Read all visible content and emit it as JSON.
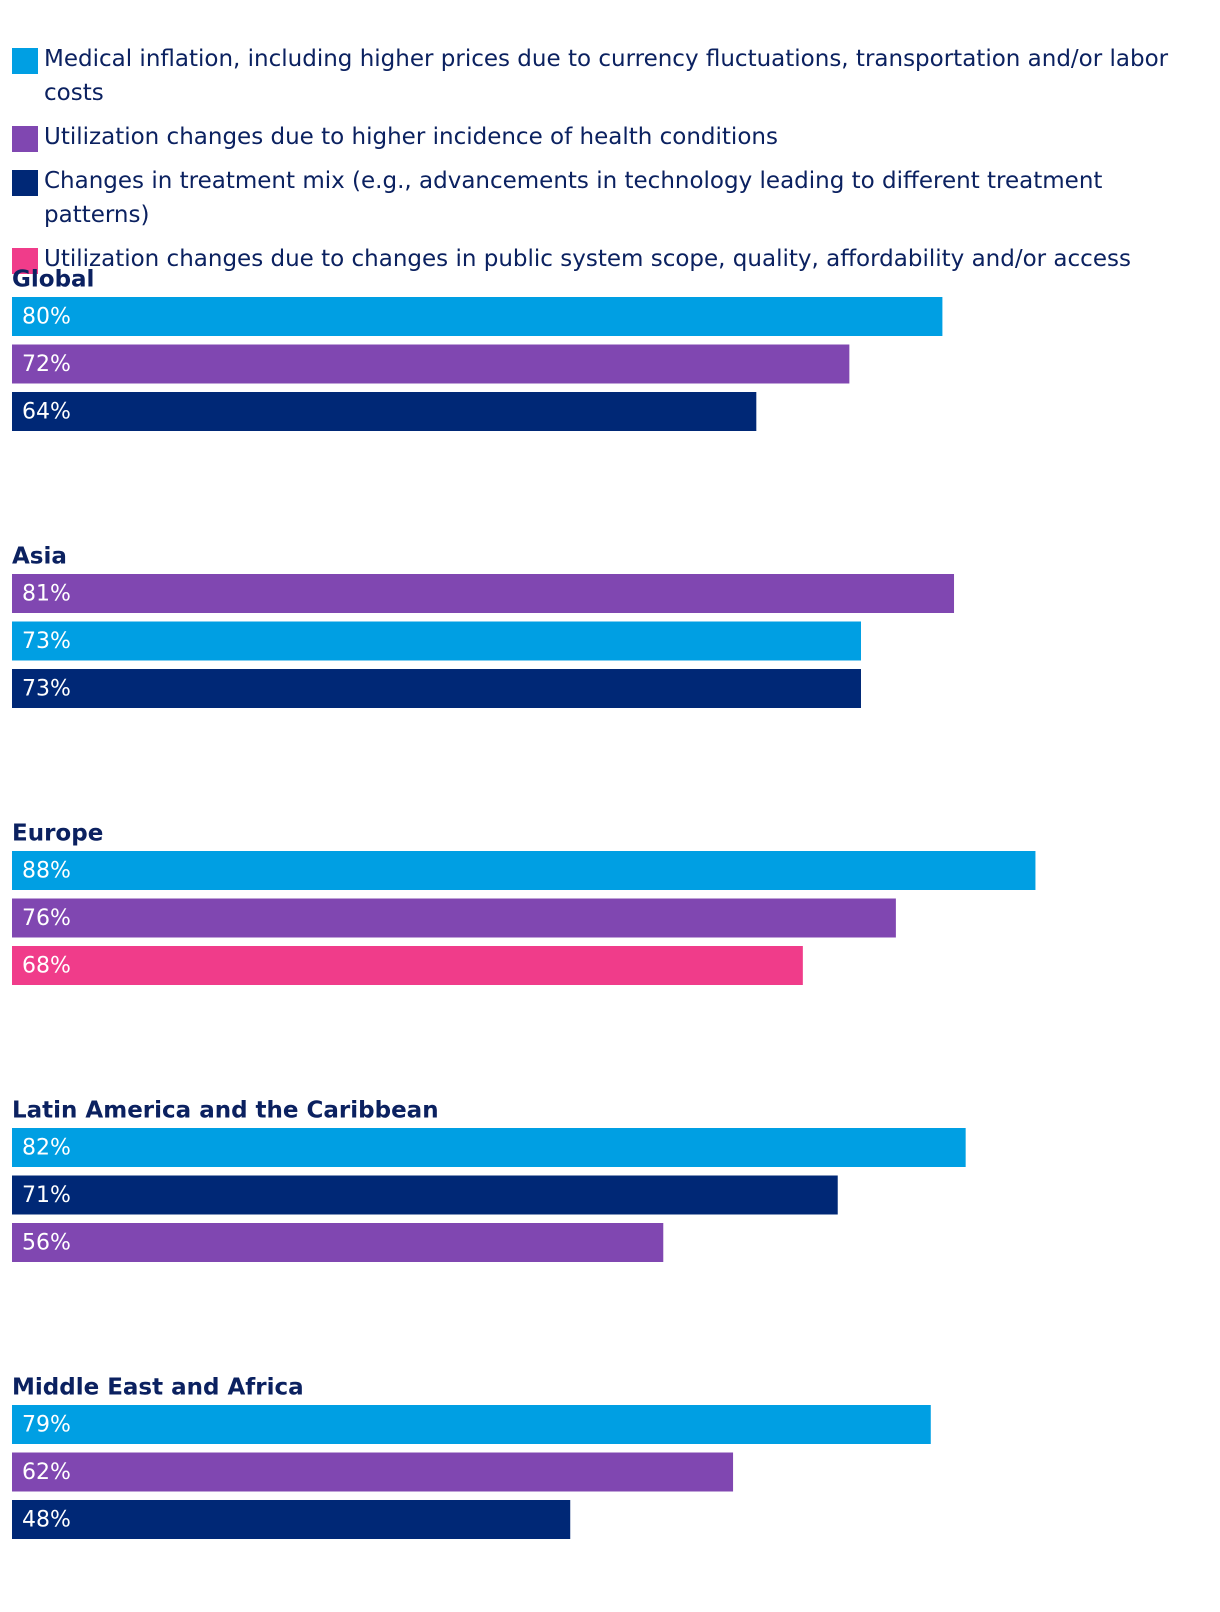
{
  "legend": [
    {
      "key": "inflation",
      "label": "Medical inflation, including higher prices due to currency fluctuations, transportation and/or labor costs",
      "color": "#009fe3"
    },
    {
      "key": "incidence",
      "label": "Utilization changes due to higher incidence of health conditions",
      "color": "#8047b1"
    },
    {
      "key": "mix",
      "label": "Changes in treatment mix (e.g., advancements in technology leading to different treatment patterns)",
      "color": "#002876"
    },
    {
      "key": "public",
      "label": "Utilization changes due to changes in public system scope, quality, affordability and/or access",
      "color": "#f03c8a"
    }
  ],
  "chart_data": {
    "type": "bar",
    "orientation": "horizontal",
    "value_unit": "%",
    "xlim": [
      0,
      100
    ],
    "groups": [
      {
        "name": "Global",
        "bars": [
          {
            "series": "inflation",
            "value": 80,
            "label": "80%"
          },
          {
            "series": "incidence",
            "value": 72,
            "label": "72%"
          },
          {
            "series": "mix",
            "value": 64,
            "label": "64%"
          }
        ]
      },
      {
        "name": "Asia",
        "bars": [
          {
            "series": "incidence",
            "value": 81,
            "label": "81%"
          },
          {
            "series": "inflation",
            "value": 73,
            "label": "73%"
          },
          {
            "series": "mix",
            "value": 73,
            "label": "73%"
          }
        ]
      },
      {
        "name": "Europe",
        "bars": [
          {
            "series": "inflation",
            "value": 88,
            "label": "88%"
          },
          {
            "series": "incidence",
            "value": 76,
            "label": "76%"
          },
          {
            "series": "public",
            "value": 68,
            "label": "68%"
          }
        ]
      },
      {
        "name": "Latin America and the Caribbean",
        "bars": [
          {
            "series": "inflation",
            "value": 82,
            "label": "82%"
          },
          {
            "series": "mix",
            "value": 71,
            "label": "71%"
          },
          {
            "series": "incidence",
            "value": 56,
            "label": "56%"
          }
        ]
      },
      {
        "name": "Middle East and Africa",
        "bars": [
          {
            "series": "inflation",
            "value": 79,
            "label": "79%"
          },
          {
            "series": "incidence",
            "value": 62,
            "label": "62%"
          },
          {
            "series": "mix",
            "value": 48,
            "label": "48%"
          }
        ]
      }
    ]
  }
}
